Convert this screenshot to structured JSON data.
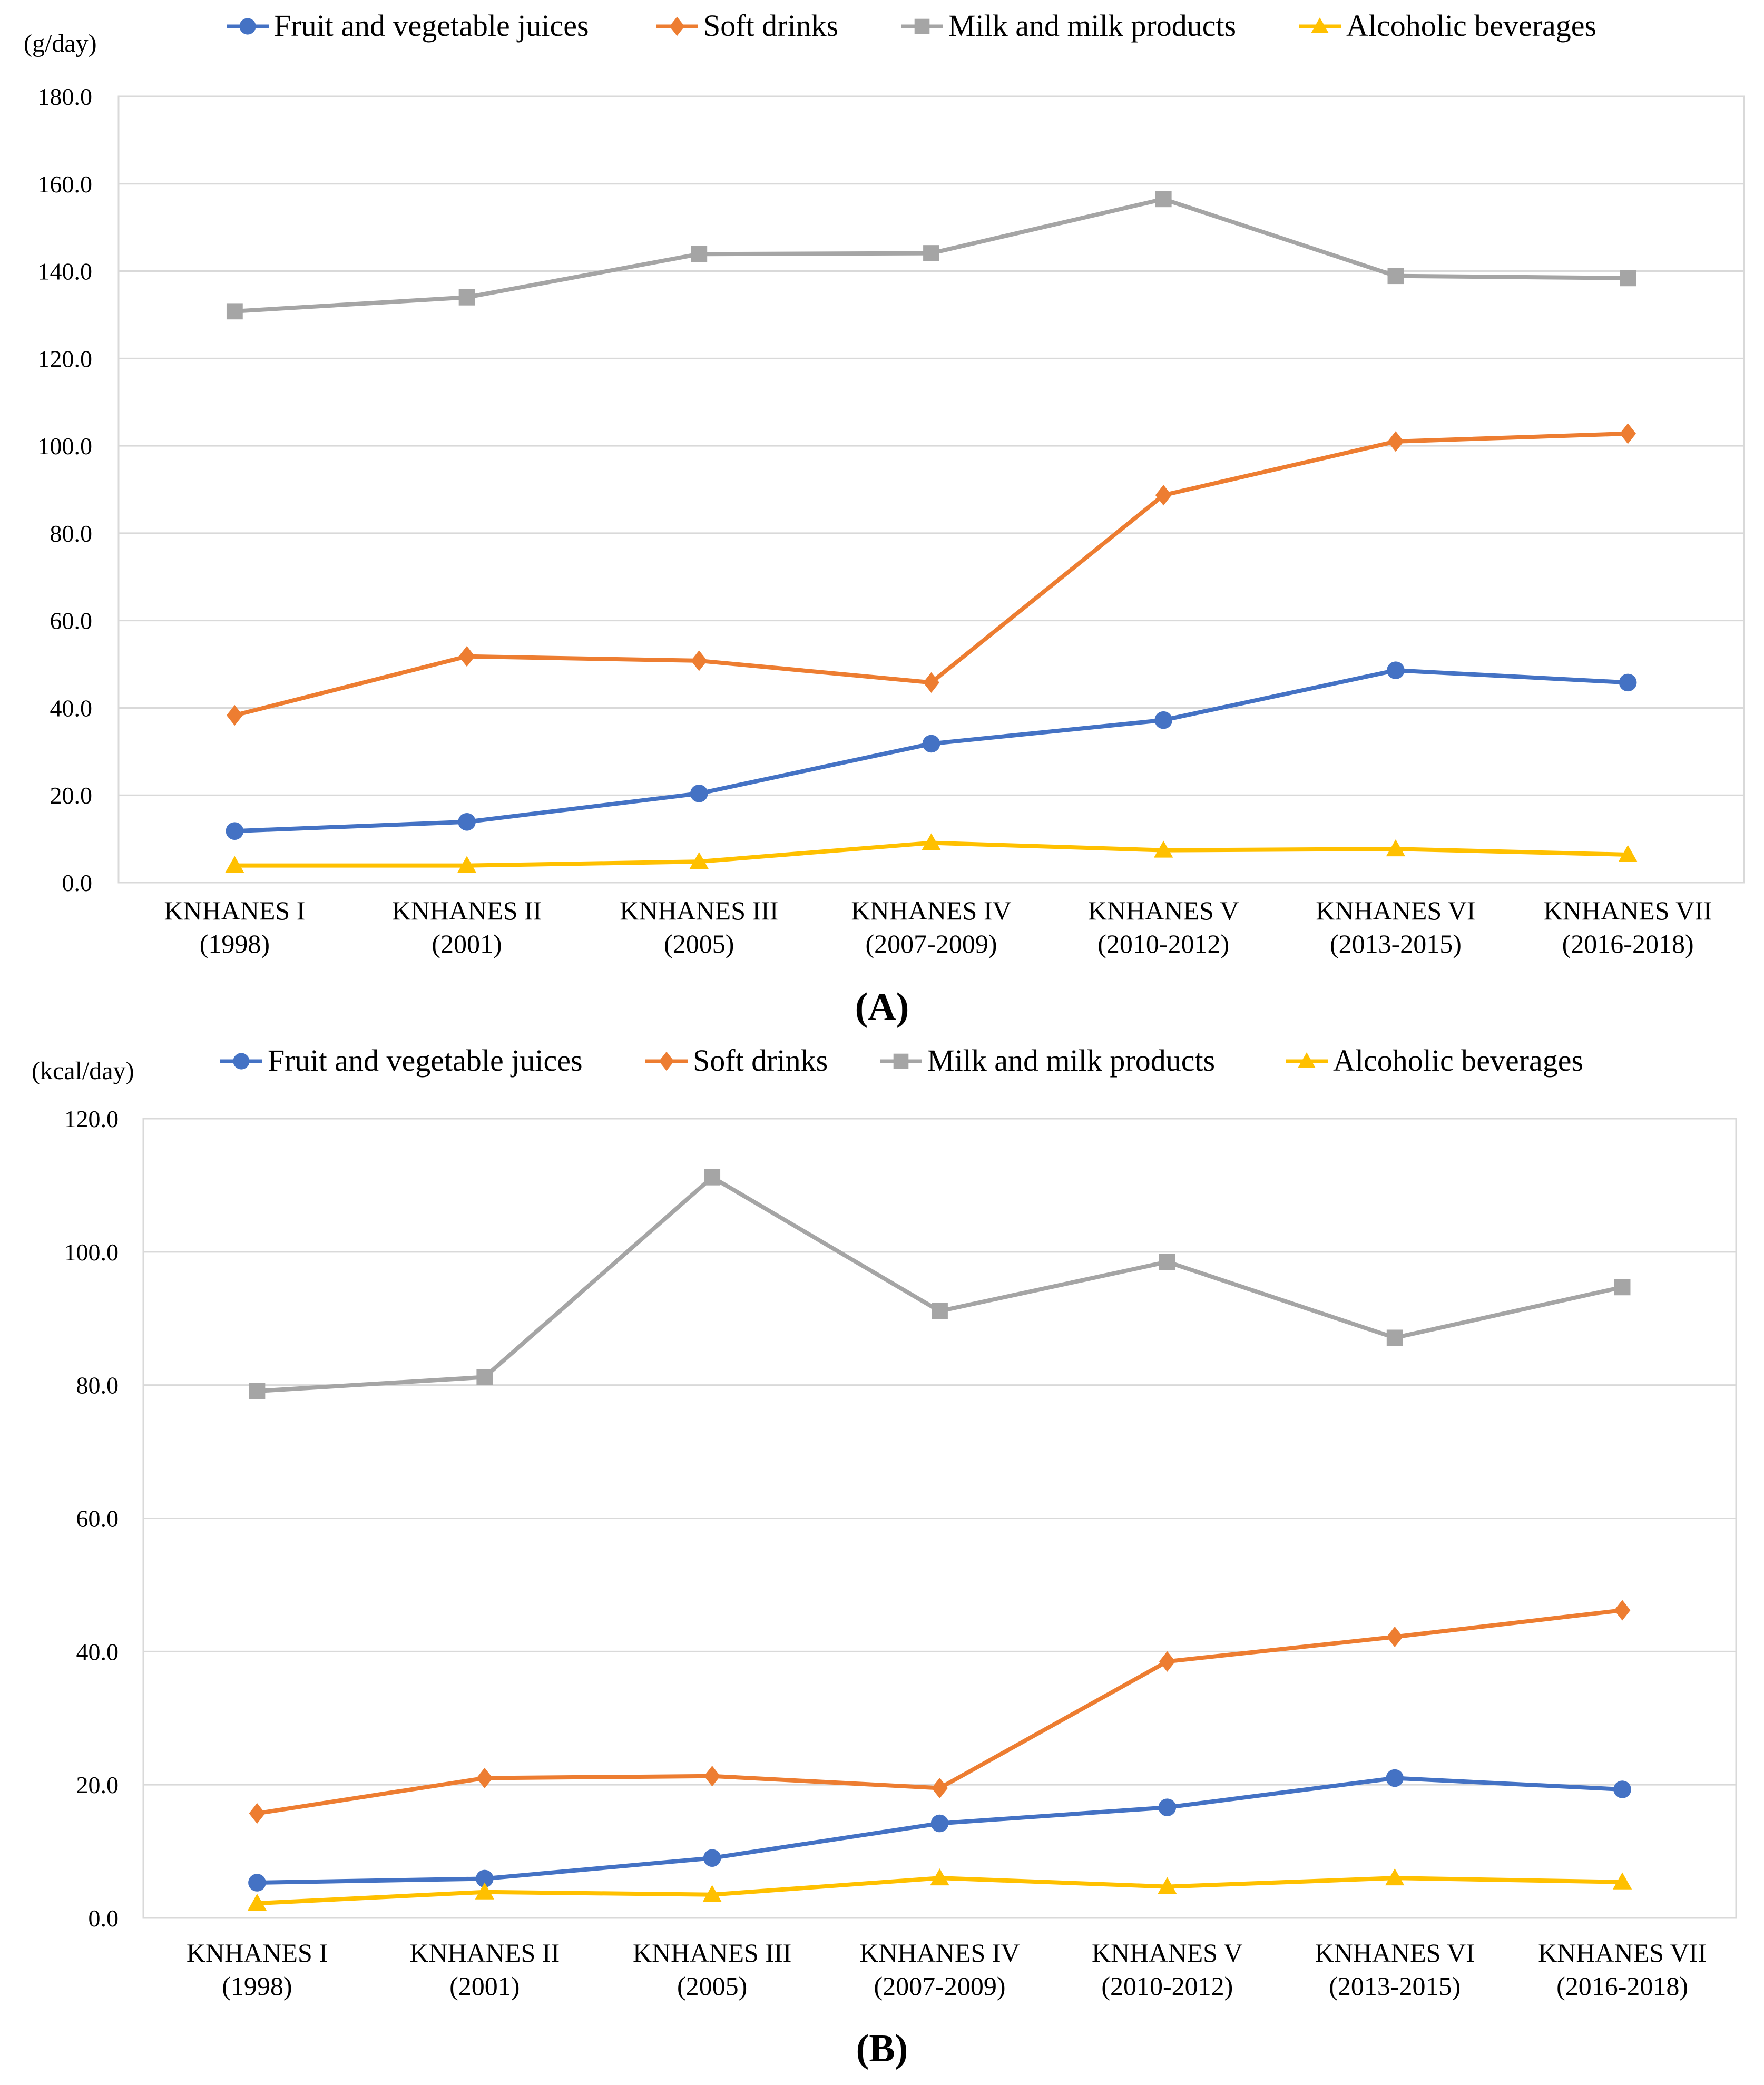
{
  "chart_data": [
    {
      "type": "line",
      "panel_label": "(A)",
      "panel_letter": "A",
      "ylabel": "(g/day)",
      "ylim": [
        0,
        180
      ],
      "yticks": [
        "0.0",
        "20.0",
        "40.0",
        "60.0",
        "80.0",
        "100.0",
        "120.0",
        "140.0",
        "160.0",
        "180.0"
      ],
      "categories": [
        [
          "KNHANES I",
          "(1998)"
        ],
        [
          "KNHANES II",
          "(2001)"
        ],
        [
          "KNHANES III",
          "(2005)"
        ],
        [
          "KNHANES IV",
          "(2007-2009)"
        ],
        [
          "KNHANES V",
          "(2010-2012)"
        ],
        [
          "KNHANES VI",
          "(2013-2015)"
        ],
        [
          "KNHANES VII",
          "(2016-2018)"
        ]
      ],
      "series": [
        {
          "name": "Fruit and vegetable juices",
          "color": "#4472c4",
          "marker": "circle",
          "values": [
            11.8,
            13.9,
            20.4,
            31.8,
            37.2,
            48.6,
            45.8
          ]
        },
        {
          "name": "Soft drinks",
          "color": "#ed7d31",
          "marker": "diamond",
          "values": [
            38.3,
            51.8,
            50.8,
            45.8,
            88.7,
            101.0,
            102.8
          ]
        },
        {
          "name": "Milk and milk products",
          "color": "#a5a5a5",
          "marker": "square",
          "values": [
            130.8,
            134.0,
            143.9,
            144.1,
            156.5,
            138.9,
            138.4
          ]
        },
        {
          "name": "Alcoholic beverages",
          "color": "#ffc000",
          "marker": "triangle",
          "values": [
            3.9,
            3.9,
            4.8,
            9.1,
            7.4,
            7.7,
            6.4
          ]
        }
      ]
    },
    {
      "type": "line",
      "panel_label": "(B)",
      "panel_letter": "B",
      "ylabel": "(kcal/day)",
      "ylim": [
        0,
        120
      ],
      "yticks": [
        "0.0",
        "20.0",
        "40.0",
        "60.0",
        "80.0",
        "100.0",
        "120.0"
      ],
      "categories": [
        [
          "KNHANES I",
          "(1998)"
        ],
        [
          "KNHANES II",
          "(2001)"
        ],
        [
          "KNHANES III",
          "(2005)"
        ],
        [
          "KNHANES IV",
          "(2007-2009)"
        ],
        [
          "KNHANES V",
          "(2010-2012)"
        ],
        [
          "KNHANES VI",
          "(2013-2015)"
        ],
        [
          "KNHANES VII",
          "(2016-2018)"
        ]
      ],
      "series": [
        {
          "name": "Fruit and vegetable juices",
          "color": "#4472c4",
          "marker": "circle",
          "values": [
            5.3,
            5.9,
            9.0,
            14.2,
            16.6,
            21.0,
            19.3
          ]
        },
        {
          "name": "Soft drinks",
          "color": "#ed7d31",
          "marker": "diamond",
          "values": [
            15.7,
            21.0,
            21.3,
            19.5,
            38.5,
            42.2,
            46.2
          ]
        },
        {
          "name": "Milk and milk products",
          "color": "#a5a5a5",
          "marker": "square",
          "values": [
            79.1,
            81.2,
            111.2,
            91.1,
            98.5,
            87.1,
            94.7
          ]
        },
        {
          "name": "Alcoholic beverages",
          "color": "#ffc000",
          "marker": "triangle",
          "values": [
            2.2,
            3.9,
            3.5,
            6.0,
            4.7,
            6.0,
            5.4
          ]
        }
      ]
    }
  ]
}
